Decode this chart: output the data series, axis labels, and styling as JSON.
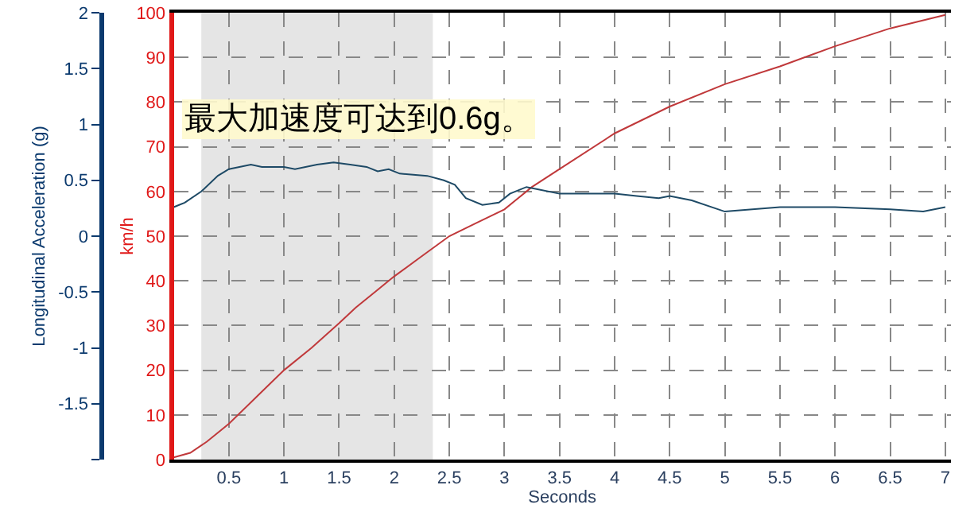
{
  "chart_data": {
    "type": "line",
    "xlabel": "Seconds",
    "ylabel": "km/h",
    "y2label": "Longitudinal Acceleration (g)",
    "annotations": [
      "最大加速度可达到0.6g。"
    ],
    "xlim": [
      0,
      7.05
    ],
    "xticks": [
      0.5,
      1,
      1.5,
      2,
      2.5,
      3,
      3.5,
      4,
      4.5,
      5,
      5.5,
      6,
      6.5,
      7
    ],
    "ylim": [
      0,
      100
    ],
    "yticks": [
      0,
      10,
      20,
      30,
      40,
      50,
      60,
      70,
      80,
      90,
      100
    ],
    "y2lim": [
      -2,
      2
    ],
    "y2ticks": [
      {
        "value": -2,
        "label": null
      },
      -1.5,
      -1,
      -0.5,
      0,
      0.5,
      1,
      1.5,
      2
    ],
    "grid": true,
    "line_style": "solid",
    "marker": "none",
    "bands": [
      {
        "axis": "x",
        "from": 0.25,
        "to": 2.35,
        "color": "#d3d3d3"
      }
    ],
    "series": [
      {
        "color": "#c0393b",
        "axis": "y",
        "x": [
          0,
          0.15,
          0.3,
          0.5,
          0.75,
          1.0,
          1.25,
          1.5,
          1.65,
          1.85,
          2.0,
          2.25,
          2.5,
          2.75,
          3.0,
          3.25,
          3.5,
          4.0,
          4.5,
          5.0,
          5.5,
          6.0,
          6.5,
          7.0
        ],
        "values": [
          0.5,
          1.5,
          4,
          8,
          14,
          20,
          25,
          30.5,
          34,
          38,
          41,
          45.5,
          50,
          53,
          56,
          61,
          65,
          73,
          79,
          84,
          88,
          92.5,
          96.5,
          99.5
        ]
      },
      {
        "color": "#1e4a66",
        "axis": "y2",
        "x": [
          0,
          0.1,
          0.25,
          0.4,
          0.5,
          0.7,
          0.8,
          1.0,
          1.1,
          1.3,
          1.45,
          1.6,
          1.75,
          1.85,
          1.95,
          2.05,
          2.3,
          2.45,
          2.55,
          2.65,
          2.8,
          2.95,
          3.05,
          3.2,
          3.3,
          3.5,
          4.0,
          4.2,
          4.4,
          4.5,
          4.7,
          5.0,
          5.5,
          6.0,
          6.5,
          6.8,
          7.0
        ],
        "values": [
          0.26,
          0.3,
          0.4,
          0.54,
          0.6,
          0.64,
          0.62,
          0.62,
          0.6,
          0.64,
          0.66,
          0.64,
          0.62,
          0.58,
          0.6,
          0.56,
          0.54,
          0.5,
          0.46,
          0.34,
          0.28,
          0.3,
          0.38,
          0.44,
          0.42,
          0.38,
          0.38,
          0.36,
          0.34,
          0.36,
          0.32,
          0.22,
          0.26,
          0.26,
          0.24,
          0.22,
          0.26
        ]
      }
    ]
  }
}
